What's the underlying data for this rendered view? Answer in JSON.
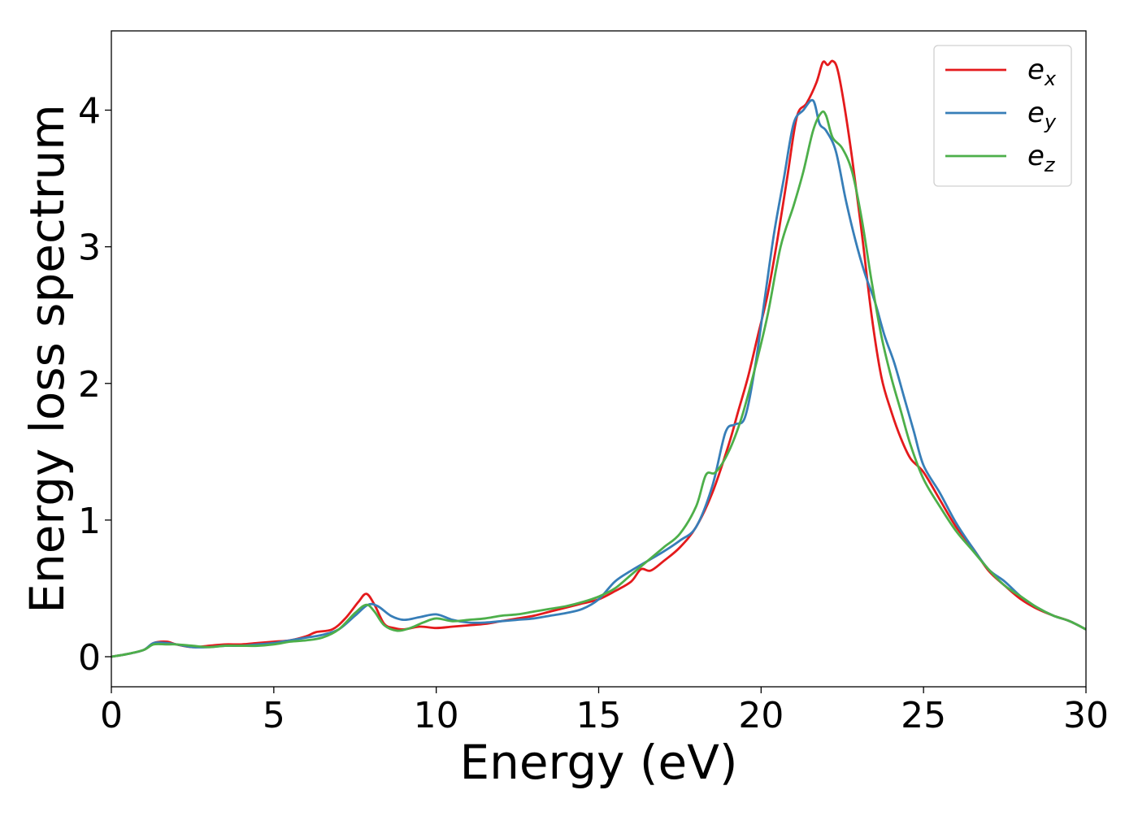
{
  "chart_data": {
    "type": "line",
    "title": "",
    "xlabel": "Energy (eV)",
    "ylabel": "Energy loss spectrum",
    "xlim": [
      0,
      30
    ],
    "ylim": [
      -0.22,
      4.58
    ],
    "xticks": [
      0,
      5,
      10,
      15,
      20,
      25,
      30
    ],
    "yticks": [
      0,
      1,
      2,
      3,
      4
    ],
    "grid": false,
    "legend_position": "top-right",
    "series": [
      {
        "base": "e",
        "subscript": "x",
        "color": "#e41a1c",
        "x": [
          0,
          0.5,
          1.0,
          1.3,
          1.7,
          2.0,
          2.5,
          3.0,
          3.5,
          4.0,
          4.5,
          5.0,
          5.5,
          6.0,
          6.3,
          6.8,
          7.2,
          7.6,
          7.85,
          8.1,
          8.4,
          8.7,
          9.0,
          9.5,
          10.0,
          10.5,
          11.0,
          11.5,
          12.0,
          12.5,
          13.0,
          13.5,
          14.0,
          14.5,
          15.0,
          15.5,
          16.0,
          16.3,
          16.6,
          17.0,
          17.5,
          18.0,
          18.5,
          19.0,
          19.3,
          19.6,
          19.9,
          20.2,
          20.5,
          20.8,
          21.1,
          21.4,
          21.7,
          21.9,
          22.05,
          22.2,
          22.35,
          22.55,
          22.8,
          23.1,
          23.4,
          23.7,
          24.0,
          24.3,
          24.6,
          25.0,
          25.5,
          26.0,
          26.5,
          27.0,
          27.5,
          28.0,
          28.5,
          29.0,
          29.5,
          30.0
        ],
        "y": [
          0.0,
          0.02,
          0.05,
          0.1,
          0.11,
          0.09,
          0.07,
          0.08,
          0.09,
          0.09,
          0.1,
          0.11,
          0.12,
          0.15,
          0.18,
          0.2,
          0.28,
          0.4,
          0.46,
          0.38,
          0.24,
          0.21,
          0.2,
          0.22,
          0.21,
          0.22,
          0.23,
          0.24,
          0.26,
          0.28,
          0.3,
          0.33,
          0.36,
          0.39,
          0.42,
          0.48,
          0.55,
          0.64,
          0.63,
          0.7,
          0.8,
          0.95,
          1.2,
          1.55,
          1.8,
          2.05,
          2.35,
          2.65,
          3.05,
          3.5,
          3.95,
          4.05,
          4.2,
          4.35,
          4.33,
          4.36,
          4.3,
          4.05,
          3.65,
          3.1,
          2.5,
          2.05,
          1.8,
          1.6,
          1.45,
          1.35,
          1.15,
          0.95,
          0.8,
          0.63,
          0.52,
          0.42,
          0.35,
          0.3,
          0.26,
          0.2
        ]
      },
      {
        "base": "e",
        "subscript": "y",
        "color": "#377eb8",
        "x": [
          0,
          0.5,
          1.0,
          1.3,
          1.7,
          2.0,
          2.5,
          3.0,
          3.5,
          4.0,
          4.5,
          5.0,
          5.5,
          6.0,
          6.5,
          7.0,
          7.5,
          7.9,
          8.2,
          8.6,
          9.0,
          9.5,
          10.0,
          10.5,
          11.0,
          11.5,
          12.0,
          12.5,
          13.0,
          13.5,
          14.0,
          14.5,
          15.0,
          15.5,
          16.0,
          16.5,
          17.0,
          17.5,
          18.0,
          18.5,
          18.9,
          19.2,
          19.5,
          19.8,
          20.1,
          20.4,
          20.7,
          21.0,
          21.3,
          21.6,
          21.8,
          22.0,
          22.3,
          22.6,
          22.9,
          23.2,
          23.5,
          23.8,
          24.1,
          24.4,
          24.7,
          25.0,
          25.5,
          26.0,
          26.5,
          27.0,
          27.5,
          28.0,
          28.5,
          29.0,
          29.5,
          30.0
        ],
        "y": [
          0.0,
          0.02,
          0.05,
          0.1,
          0.1,
          0.09,
          0.07,
          0.07,
          0.08,
          0.08,
          0.09,
          0.1,
          0.12,
          0.14,
          0.16,
          0.2,
          0.3,
          0.38,
          0.37,
          0.3,
          0.27,
          0.29,
          0.31,
          0.27,
          0.25,
          0.25,
          0.26,
          0.27,
          0.28,
          0.3,
          0.32,
          0.35,
          0.42,
          0.55,
          0.63,
          0.7,
          0.77,
          0.85,
          0.95,
          1.25,
          1.64,
          1.7,
          1.75,
          2.1,
          2.6,
          3.1,
          3.5,
          3.9,
          4.0,
          4.07,
          3.9,
          3.85,
          3.7,
          3.35,
          3.05,
          2.8,
          2.6,
          2.35,
          2.15,
          1.9,
          1.65,
          1.4,
          1.2,
          0.98,
          0.8,
          0.64,
          0.55,
          0.44,
          0.36,
          0.3,
          0.26,
          0.2
        ]
      },
      {
        "base": "e",
        "subscript": "z",
        "color": "#4daf4a",
        "x": [
          0,
          0.5,
          1.0,
          1.3,
          1.7,
          2.0,
          2.5,
          3.0,
          3.5,
          4.0,
          4.5,
          5.0,
          5.5,
          6.0,
          6.5,
          7.0,
          7.5,
          7.85,
          8.1,
          8.4,
          8.8,
          9.2,
          9.6,
          10.0,
          10.5,
          11.0,
          11.5,
          12.0,
          12.5,
          13.0,
          13.5,
          14.0,
          14.5,
          15.0,
          15.5,
          16.0,
          16.5,
          17.0,
          17.5,
          18.0,
          18.3,
          18.6,
          19.0,
          19.4,
          19.8,
          20.2,
          20.6,
          21.0,
          21.3,
          21.6,
          21.85,
          22.0,
          22.2,
          22.5,
          22.8,
          23.1,
          23.4,
          23.7,
          24.0,
          24.3,
          24.6,
          25.0,
          25.5,
          26.0,
          26.5,
          27.0,
          27.5,
          28.0,
          28.5,
          29.0,
          29.5,
          30.0
        ],
        "y": [
          0.0,
          0.02,
          0.05,
          0.09,
          0.09,
          0.09,
          0.08,
          0.07,
          0.08,
          0.08,
          0.08,
          0.09,
          0.11,
          0.12,
          0.14,
          0.2,
          0.32,
          0.38,
          0.33,
          0.23,
          0.19,
          0.21,
          0.25,
          0.28,
          0.26,
          0.27,
          0.28,
          0.3,
          0.31,
          0.33,
          0.35,
          0.37,
          0.4,
          0.44,
          0.5,
          0.6,
          0.7,
          0.8,
          0.9,
          1.1,
          1.33,
          1.35,
          1.5,
          1.75,
          2.1,
          2.5,
          3.0,
          3.3,
          3.55,
          3.85,
          3.98,
          3.96,
          3.8,
          3.72,
          3.55,
          3.2,
          2.75,
          2.35,
          2.05,
          1.8,
          1.55,
          1.3,
          1.1,
          0.92,
          0.78,
          0.64,
          0.52,
          0.44,
          0.36,
          0.3,
          0.26,
          0.2
        ]
      }
    ]
  }
}
